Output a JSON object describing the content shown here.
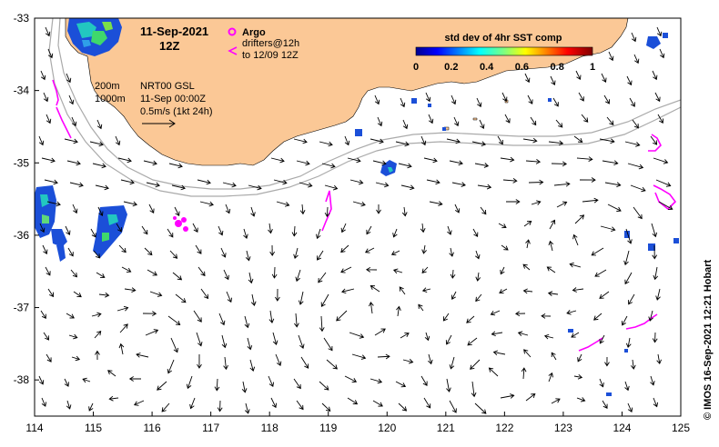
{
  "map": {
    "lon_range": [
      114,
      125
    ],
    "lat_range": [
      -38.5,
      -33
    ],
    "x_ticks": [
      "114",
      "115",
      "116",
      "117",
      "118",
      "119",
      "120",
      "121",
      "122",
      "123",
      "124",
      "125"
    ],
    "y_ticks": [
      "-33",
      "-34",
      "-35",
      "-36",
      "-37",
      "-38"
    ],
    "colors": {
      "land": "#fbc896",
      "ocean": "#ffffff",
      "isobath": "#aaaaaa",
      "drifter": "#ff00ff",
      "vector": "#000000"
    }
  },
  "header": {
    "date": "11-Sep-2021",
    "time": "12Z"
  },
  "legend": {
    "argo_label": "Argo",
    "drifters_line1": "drifters@12h",
    "drifters_line2": "to 12/09 12Z"
  },
  "isobaths": {
    "label_200": "200m",
    "label_1000": "1000m"
  },
  "product": {
    "name": "NRT00 GSL",
    "time": "11-Sep 00:00Z",
    "scale": "0.5m/s (1kt 24h)"
  },
  "colorbar": {
    "title": "std dev of 4hr SST comp",
    "ticks": [
      "0",
      "0.2",
      "0.4",
      "0.6",
      "0.8",
      "1"
    ]
  },
  "credit": "© IMOS 16-Sep-2021 12:21 Hobart"
}
